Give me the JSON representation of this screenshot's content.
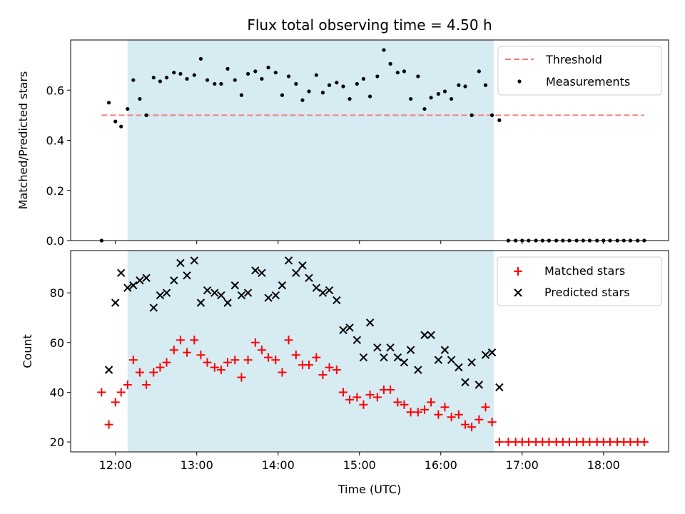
{
  "chart_data": {
    "title": "Flux total observing time = 4.50 h",
    "xlabel": "Time (UTC)",
    "x_ticks": [
      "12:00",
      "13:00",
      "14:00",
      "15:00",
      "16:00",
      "17:00",
      "18:00"
    ],
    "x_range_hours": [
      11.45,
      18.8
    ],
    "shaded_interval_hours": [
      12.15,
      16.65
    ],
    "colors": {
      "shade": "#add8e6",
      "threshold": "#f08080",
      "matched": "#ff0000",
      "predicted": "#000000",
      "measurement": "#000000"
    },
    "top": {
      "type": "scatter",
      "ylabel": "Matched/Predicted stars",
      "ylim": [
        0,
        0.8
      ],
      "y_ticks": [
        "0.0",
        "0.2",
        "0.4",
        "0.6"
      ],
      "y_tick_values": [
        0,
        0.2,
        0.4,
        0.6
      ],
      "threshold": {
        "name": "Threshold",
        "value": 0.5,
        "x_start": 11.83,
        "x_end": 18.5
      },
      "measurements_name": "Measurements",
      "legend_position": "top-right",
      "x": [
        11.83,
        11.92,
        12.0,
        12.07,
        12.15,
        12.22,
        12.3,
        12.38,
        12.47,
        12.55,
        12.63,
        12.72,
        12.8,
        12.88,
        12.97,
        13.05,
        13.13,
        13.22,
        13.3,
        13.38,
        13.47,
        13.55,
        13.63,
        13.72,
        13.8,
        13.88,
        13.97,
        14.05,
        14.13,
        14.22,
        14.3,
        14.38,
        14.47,
        14.55,
        14.63,
        14.72,
        14.8,
        14.88,
        14.97,
        15.05,
        15.13,
        15.22,
        15.3,
        15.38,
        15.47,
        15.55,
        15.63,
        15.72,
        15.8,
        15.88,
        15.97,
        16.05,
        16.13,
        16.22,
        16.3,
        16.38,
        16.47,
        16.55,
        16.63,
        16.72,
        16.83,
        16.92,
        17.0,
        17.08,
        17.17,
        17.25,
        17.33,
        17.42,
        17.5,
        17.58,
        17.67,
        17.75,
        17.83,
        17.92,
        18.0,
        18.08,
        18.17,
        18.25,
        18.33,
        18.42,
        18.5
      ],
      "y": [
        0.0,
        0.55,
        0.475,
        0.455,
        0.525,
        0.64,
        0.565,
        0.5,
        0.65,
        0.635,
        0.65,
        0.67,
        0.665,
        0.645,
        0.66,
        0.725,
        0.64,
        0.625,
        0.625,
        0.685,
        0.64,
        0.58,
        0.665,
        0.675,
        0.645,
        0.69,
        0.67,
        0.58,
        0.655,
        0.625,
        0.56,
        0.595,
        0.66,
        0.59,
        0.62,
        0.63,
        0.615,
        0.565,
        0.625,
        0.645,
        0.575,
        0.655,
        0.76,
        0.705,
        0.67,
        0.675,
        0.565,
        0.655,
        0.525,
        0.57,
        0.585,
        0.595,
        0.565,
        0.62,
        0.615,
        0.5,
        0.675,
        0.62,
        0.5,
        0.48,
        0.0,
        0.0,
        0.0,
        0.0,
        0.0,
        0.0,
        0.0,
        0.0,
        0.0,
        0.0,
        0.0,
        0.0,
        0.0,
        0.0,
        0.0,
        0.0,
        0.0,
        0.0,
        0.0,
        0.0,
        0.0
      ]
    },
    "bottom": {
      "type": "scatter",
      "ylabel": "Count",
      "ylim": [
        16,
        97
      ],
      "y_ticks": [
        "20",
        "40",
        "60",
        "80"
      ],
      "y_tick_values": [
        20,
        40,
        60,
        80
      ],
      "legend_position": "top-right",
      "series": [
        {
          "name": "Matched stars",
          "marker": "plus",
          "x": [
            11.83,
            11.92,
            12.0,
            12.07,
            12.15,
            12.22,
            12.3,
            12.38,
            12.47,
            12.55,
            12.63,
            12.72,
            12.8,
            12.88,
            12.97,
            13.05,
            13.13,
            13.22,
            13.3,
            13.38,
            13.47,
            13.55,
            13.63,
            13.72,
            13.8,
            13.88,
            13.97,
            14.05,
            14.13,
            14.22,
            14.3,
            14.38,
            14.47,
            14.55,
            14.63,
            14.72,
            14.8,
            14.88,
            14.97,
            15.05,
            15.13,
            15.22,
            15.3,
            15.38,
            15.47,
            15.55,
            15.63,
            15.72,
            15.8,
            15.88,
            15.97,
            16.05,
            16.13,
            16.22,
            16.3,
            16.38,
            16.47,
            16.55,
            16.63,
            16.72,
            16.83,
            16.92,
            17.0,
            17.08,
            17.17,
            17.25,
            17.33,
            17.42,
            17.5,
            17.58,
            17.67,
            17.75,
            17.83,
            17.92,
            18.0,
            18.08,
            18.17,
            18.25,
            18.33,
            18.42,
            18.5
          ],
          "y": [
            40,
            27,
            36,
            40,
            43,
            53,
            48,
            43,
            48,
            50,
            52,
            57,
            61,
            56,
            61,
            55,
            52,
            50,
            49,
            52,
            53,
            46,
            53,
            60,
            57,
            54,
            53,
            48,
            61,
            55,
            51,
            51,
            54,
            47,
            50,
            49,
            40,
            37,
            38,
            35,
            39,
            38,
            41,
            41,
            36,
            35,
            32,
            32,
            33,
            36,
            31,
            34,
            30,
            31,
            27,
            26,
            29,
            34,
            28,
            20,
            20,
            20,
            20,
            20,
            20,
            20,
            20,
            20,
            20,
            20,
            20,
            20,
            20,
            20,
            20,
            20,
            20,
            20,
            20,
            20,
            20
          ]
        },
        {
          "name": "Predicted stars",
          "marker": "cross",
          "x": [
            11.92,
            12.0,
            12.07,
            12.15,
            12.22,
            12.3,
            12.38,
            12.47,
            12.55,
            12.63,
            12.72,
            12.8,
            12.88,
            12.97,
            13.05,
            13.13,
            13.22,
            13.3,
            13.38,
            13.47,
            13.55,
            13.63,
            13.72,
            13.8,
            13.88,
            13.97,
            14.05,
            14.13,
            14.22,
            14.3,
            14.38,
            14.47,
            14.55,
            14.63,
            14.72,
            14.8,
            14.88,
            14.97,
            15.05,
            15.13,
            15.22,
            15.3,
            15.38,
            15.47,
            15.55,
            15.63,
            15.72,
            15.8,
            15.88,
            15.97,
            16.05,
            16.13,
            16.22,
            16.3,
            16.38,
            16.47,
            16.55,
            16.63,
            16.72
          ],
          "y": [
            49,
            76,
            88,
            82,
            83,
            85,
            86,
            74,
            79,
            80,
            85,
            92,
            87,
            93,
            76,
            81,
            80,
            79,
            76,
            83,
            79,
            80,
            89,
            88,
            78,
            79,
            83,
            93,
            88,
            91,
            86,
            82,
            80,
            81,
            77,
            65,
            66,
            61,
            54,
            68,
            58,
            54,
            58,
            54,
            52,
            57,
            49,
            63,
            63,
            53,
            57,
            53,
            50,
            44,
            52,
            43,
            55,
            56,
            42
          ]
        }
      ]
    }
  }
}
